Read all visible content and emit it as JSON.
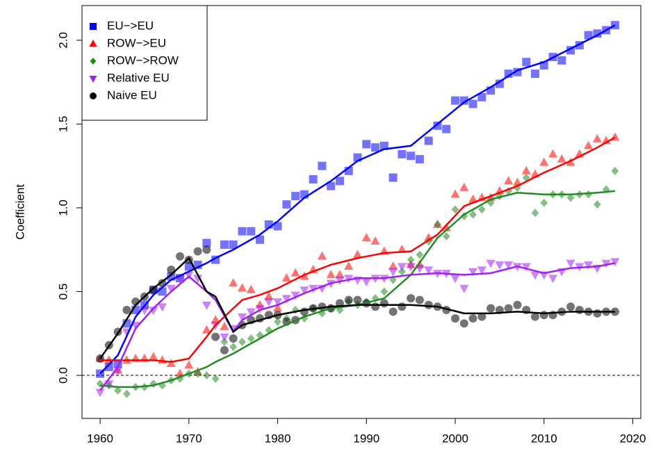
{
  "chart_data": {
    "type": "scatter",
    "y_label": "Coefficient",
    "x": [
      1960,
      1961,
      1962,
      1963,
      1964,
      1965,
      1966,
      1967,
      1968,
      1969,
      1970,
      1971,
      1972,
      1973,
      1974,
      1975,
      1976,
      1977,
      1978,
      1979,
      1980,
      1981,
      1982,
      1983,
      1984,
      1985,
      1986,
      1987,
      1988,
      1989,
      1990,
      1991,
      1992,
      1993,
      1994,
      1995,
      1996,
      1997,
      1998,
      1999,
      2000,
      2001,
      2002,
      2003,
      2004,
      2005,
      2006,
      2007,
      2008,
      2009,
      2010,
      2011,
      2012,
      2013,
      2014,
      2015,
      2016,
      2017,
      2018
    ],
    "fit_x": [
      1960,
      1962,
      1964,
      1966,
      1968,
      1970,
      1972,
      1973,
      1975,
      1976,
      1978,
      1980,
      1983,
      1986,
      1989,
      1992,
      1995,
      1998,
      2001,
      2004,
      2007,
      2010,
      2013,
      2016,
      2018
    ],
    "series": [
      {
        "name": "EU−>EU",
        "color": "#0000ff",
        "marker": "square",
        "values": [
          0.01,
          0.05,
          0.07,
          0.31,
          0.39,
          0.42,
          0.51,
          0.5,
          0.59,
          0.58,
          0.65,
          0.66,
          0.79,
          0.69,
          0.78,
          0.78,
          0.86,
          0.86,
          0.81,
          0.9,
          0.89,
          1.02,
          1.07,
          1.08,
          1.17,
          1.25,
          1.13,
          1.16,
          1.22,
          1.3,
          1.38,
          1.36,
          1.37,
          1.18,
          1.32,
          1.31,
          1.29,
          1.4,
          1.49,
          1.47,
          1.64,
          1.64,
          1.62,
          1.66,
          1.7,
          1.74,
          1.8,
          1.81,
          1.87,
          1.8,
          1.85,
          1.9,
          1.88,
          1.94,
          1.97,
          2.03,
          2.04,
          2.06,
          2.09
        ],
        "fit": [
          0.01,
          0.12,
          0.35,
          0.48,
          0.57,
          0.62,
          0.67,
          0.7,
          0.75,
          0.78,
          0.84,
          0.92,
          1.06,
          1.16,
          1.28,
          1.35,
          1.37,
          1.5,
          1.63,
          1.72,
          1.82,
          1.87,
          1.95,
          2.03,
          2.09
        ]
      },
      {
        "name": "ROW−>EU",
        "color": "#ff0000",
        "marker": "triangle",
        "values": [
          0.1,
          0.09,
          0.03,
          0.09,
          0.1,
          0.1,
          0.11,
          0.09,
          0.07,
          0.01,
          0.06,
          0.02,
          0.27,
          0.33,
          0.29,
          0.55,
          0.52,
          0.51,
          0.42,
          0.47,
          0.4,
          0.58,
          0.61,
          0.59,
          0.63,
          0.71,
          0.6,
          0.6,
          0.65,
          0.72,
          0.82,
          0.8,
          0.74,
          0.65,
          0.75,
          0.66,
          0.66,
          0.82,
          0.9,
          0.88,
          1.08,
          1.12,
          1.05,
          1.06,
          1.06,
          1.1,
          1.16,
          1.15,
          1.22,
          1.2,
          1.27,
          1.32,
          1.29,
          1.27,
          1.32,
          1.37,
          1.41,
          1.4,
          1.42
        ],
        "fit": [
          0.09,
          0.09,
          0.09,
          0.09,
          0.08,
          0.1,
          0.23,
          0.3,
          0.4,
          0.45,
          0.48,
          0.52,
          0.6,
          0.66,
          0.7,
          0.73,
          0.74,
          0.84,
          1.01,
          1.07,
          1.13,
          1.21,
          1.28,
          1.36,
          1.42
        ]
      },
      {
        "name": "ROW−>ROW",
        "color": "#228b22",
        "marker": "diamond",
        "values": [
          -0.05,
          -0.06,
          -0.09,
          -0.11,
          -0.07,
          -0.07,
          -0.05,
          -0.06,
          -0.03,
          -0.02,
          0.01,
          0.01,
          0.0,
          -0.02,
          0.2,
          0.17,
          0.2,
          0.22,
          0.24,
          0.27,
          0.32,
          0.34,
          0.39,
          0.34,
          0.4,
          0.37,
          0.4,
          0.39,
          0.44,
          0.42,
          0.44,
          0.46,
          0.5,
          0.57,
          0.62,
          0.69,
          0.72,
          0.8,
          0.9,
          0.83,
          0.99,
          0.95,
          0.96,
          0.99,
          1.03,
          1.07,
          1.1,
          1.12,
          1.18,
          0.97,
          1.03,
          1.08,
          1.08,
          1.06,
          1.08,
          1.08,
          1.02,
          1.11,
          1.22
        ],
        "fit": [
          -0.06,
          -0.07,
          -0.07,
          -0.06,
          -0.03,
          0.01,
          0.05,
          0.08,
          0.13,
          0.16,
          0.22,
          0.28,
          0.35,
          0.4,
          0.42,
          0.46,
          0.6,
          0.82,
          0.96,
          1.05,
          1.09,
          1.08,
          1.08,
          1.09,
          1.1
        ]
      },
      {
        "name": "Relative EU",
        "color": "#a020f0",
        "marker": "down-triangle",
        "values": [
          -0.1,
          -0.05,
          0.03,
          0.26,
          0.3,
          0.39,
          0.39,
          0.41,
          0.52,
          0.58,
          0.6,
          0.58,
          0.42,
          0.3,
          0.23,
          0.28,
          0.35,
          0.38,
          0.4,
          0.44,
          0.44,
          0.46,
          0.48,
          0.51,
          0.52,
          0.52,
          0.55,
          0.57,
          0.58,
          0.57,
          0.56,
          0.58,
          0.58,
          0.62,
          0.65,
          0.65,
          0.64,
          0.63,
          0.61,
          0.61,
          0.58,
          0.52,
          0.62,
          0.63,
          0.67,
          0.66,
          0.66,
          0.65,
          0.65,
          0.6,
          0.6,
          0.58,
          0.62,
          0.67,
          0.65,
          0.66,
          0.64,
          0.67,
          0.68
        ],
        "fit": [
          -0.09,
          0.05,
          0.28,
          0.4,
          0.5,
          0.59,
          0.5,
          0.45,
          0.26,
          0.33,
          0.39,
          0.42,
          0.49,
          0.55,
          0.58,
          0.58,
          0.6,
          0.61,
          0.6,
          0.61,
          0.65,
          0.61,
          0.64,
          0.65,
          0.67
        ]
      },
      {
        "name": "Naive EU",
        "color": "#000000",
        "marker": "circle",
        "values": [
          0.1,
          0.18,
          0.26,
          0.39,
          0.44,
          0.47,
          0.51,
          0.55,
          0.63,
          0.71,
          0.69,
          0.74,
          0.75,
          0.23,
          0.15,
          0.22,
          0.3,
          0.33,
          0.34,
          0.36,
          0.36,
          0.32,
          0.33,
          0.38,
          0.4,
          0.41,
          0.4,
          0.43,
          0.45,
          0.45,
          0.43,
          0.41,
          0.43,
          0.38,
          0.41,
          0.46,
          0.45,
          0.42,
          0.41,
          0.39,
          0.34,
          0.31,
          0.34,
          0.35,
          0.4,
          0.39,
          0.4,
          0.42,
          0.39,
          0.35,
          0.36,
          0.36,
          0.38,
          0.41,
          0.39,
          0.38,
          0.37,
          0.38,
          0.38
        ],
        "fit": [
          0.1,
          0.25,
          0.42,
          0.52,
          0.6,
          0.7,
          0.5,
          0.47,
          0.26,
          0.3,
          0.33,
          0.36,
          0.39,
          0.41,
          0.42,
          0.42,
          0.42,
          0.41,
          0.37,
          0.37,
          0.38,
          0.37,
          0.38,
          0.38,
          0.38
        ]
      }
    ],
    "xlim": [
      1957.96,
      2020.9
    ],
    "xticks": [
      1960,
      1970,
      1980,
      1990,
      2000,
      2010,
      2020
    ],
    "ylim": [
      -0.257,
      2.207
    ],
    "yticks": [
      {
        "value": 0,
        "label": "0.0"
      },
      {
        "value": 0.5,
        "label": "0.5"
      },
      {
        "value": 1,
        "label": "1.0"
      },
      {
        "value": 1.5,
        "label": "1.5"
      },
      {
        "value": 2,
        "label": "2.0"
      }
    ],
    "hline": 0,
    "legend": "topleft"
  }
}
